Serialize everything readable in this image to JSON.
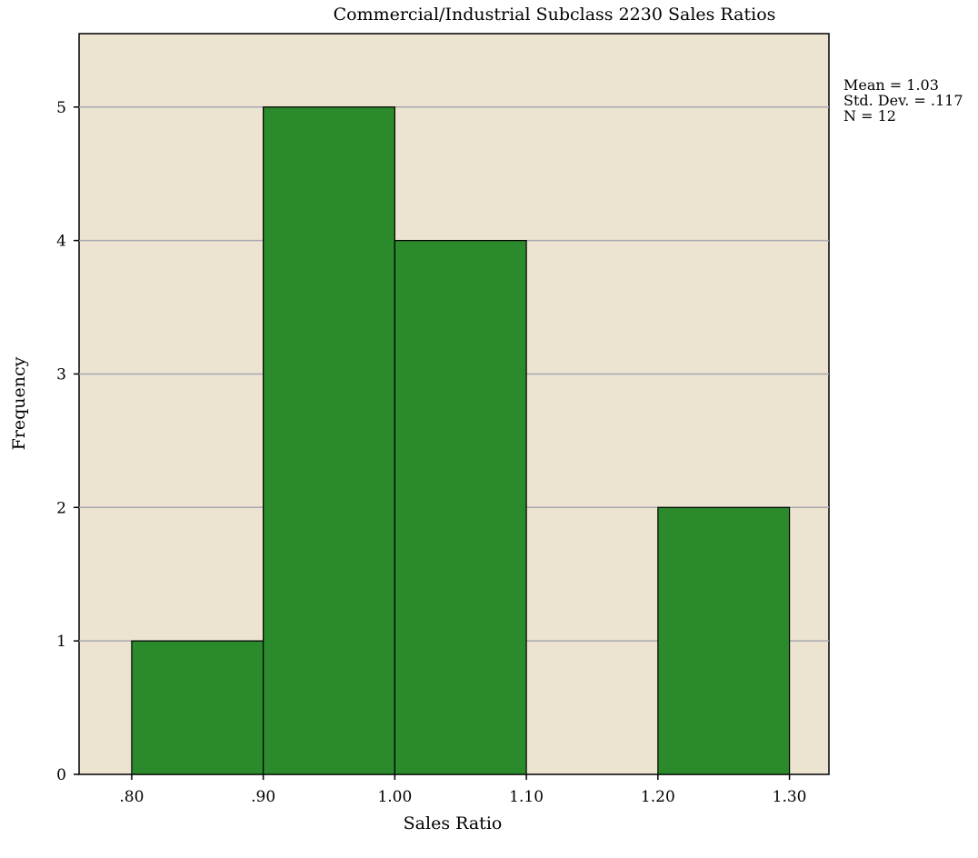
{
  "chart_data": {
    "type": "bar",
    "title": "Commercial/Industrial Subclass 2230 Sales Ratios",
    "xlabel": "Sales Ratio",
    "ylabel": "Frequency",
    "x_ticks": [
      ".80",
      ".90",
      "1.00",
      "1.10",
      "1.20",
      "1.30"
    ],
    "x_tick_values": [
      0.8,
      0.9,
      1.0,
      1.1,
      1.2,
      1.3
    ],
    "y_ticks": [
      "0",
      "1",
      "2",
      "3",
      "4",
      "5"
    ],
    "xlim": [
      0.76,
      1.33
    ],
    "ylim": [
      0,
      5.55
    ],
    "bins": [
      {
        "start": 0.8,
        "end": 0.9,
        "count": 1
      },
      {
        "start": 0.9,
        "end": 1.0,
        "count": 5
      },
      {
        "start": 1.0,
        "end": 1.1,
        "count": 4
      },
      {
        "start": 1.1,
        "end": 1.2,
        "count": 0
      },
      {
        "start": 1.2,
        "end": 1.3,
        "count": 2
      }
    ],
    "stats": [
      "Mean = 1.03",
      "Std. Dev. = .117",
      "N = 12"
    ],
    "grid": "horizontal",
    "colors": {
      "bar_fill": "#2b8a2b",
      "plot_background": "#ece4d0",
      "gridline": "#a8a8b0",
      "bar_stroke": "#000000"
    }
  }
}
